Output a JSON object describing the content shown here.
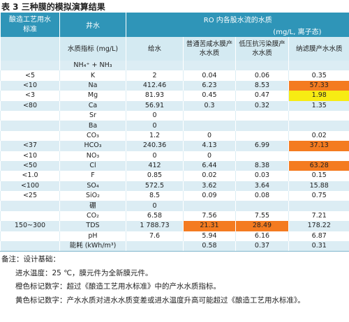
{
  "title": "表 3 三种膜的模拟演算结果",
  "table": {
    "header": {
      "standard": "酿造工艺用水标准",
      "well": "井水",
      "ro": "RO 内各股水流的水质",
      "ro_unit": "(mg/L, 离子态)",
      "columns": [
        "水质指标 (mg/L)",
        "给水",
        "普通苦咸水膜产水水质",
        "低压抗污染膜产水水质",
        "纳滤膜产水水质"
      ]
    },
    "rows": [
      [
        null,
        "NH₄⁺ + NH₃",
        null,
        null,
        null,
        null
      ],
      [
        "<5",
        "K",
        "2",
        "0.04",
        "0.06",
        "0.35"
      ],
      [
        "<10",
        "Na",
        "412.46",
        "6.23",
        "8.53",
        {
          "text": "57.33",
          "color": "#f47b20"
        }
      ],
      [
        "<3",
        "Mg",
        "81.93",
        "0.45",
        "0.47",
        {
          "text": "1.98",
          "color": "#f7ec13"
        }
      ],
      [
        "<80",
        "Ca",
        "56.91",
        "0.3",
        "0.32",
        "1.35"
      ],
      [
        null,
        "Sr",
        "0",
        null,
        null,
        null
      ],
      [
        null,
        "Ba",
        "0",
        null,
        null,
        null
      ],
      [
        null,
        "CO₃",
        "1.2",
        "0",
        null,
        "0.02"
      ],
      [
        "<37",
        "HCO₃",
        "240.36",
        "4.13",
        "6.99",
        {
          "text": "37.13",
          "color": "#f47b20"
        }
      ],
      [
        "<10",
        "NO₃",
        "0",
        "0",
        null,
        null
      ],
      [
        "<50",
        "Cl",
        "412",
        "6.44",
        "8.38",
        {
          "text": "63.28",
          "color": "#f47b20"
        }
      ],
      [
        "<1.0",
        "F",
        "0.85",
        "0.02",
        "0.03",
        "0.15"
      ],
      [
        "<100",
        "SO₄",
        "572.5",
        "3.62",
        "3.64",
        "15.88"
      ],
      [
        "<25",
        "SiO₂",
        "8.5",
        "0.09",
        "0.08",
        "0.75"
      ],
      [
        null,
        "硼",
        "0",
        null,
        null,
        null
      ],
      [
        null,
        "CO₂",
        "6.58",
        "7.56",
        "7.55",
        "7.21"
      ],
      [
        "150~300",
        "TDS",
        "1 788.73",
        {
          "text": "21.31",
          "color": "#f47b20"
        },
        {
          "text": "28.49",
          "color": "#f47b20"
        },
        "178.22"
      ],
      [
        null,
        "pH",
        "7.6",
        "5.94",
        "6.16",
        "6.87"
      ],
      [
        null,
        "能耗 (kWh/m³)",
        null,
        "0.58",
        "0.37",
        "0.31"
      ]
    ]
  },
  "notes": {
    "heading": "备注：设计基础：",
    "lines": [
      "进水温度：25 ℃，膜元件为全新膜元件。",
      "橙色标记数字：超过《酿造工艺用水标准》中的产水水质指标。",
      "黄色标记数字：产水水质对进水水质变差或进水温度升高可能超过《酿造工艺用水标准》。"
    ]
  }
}
